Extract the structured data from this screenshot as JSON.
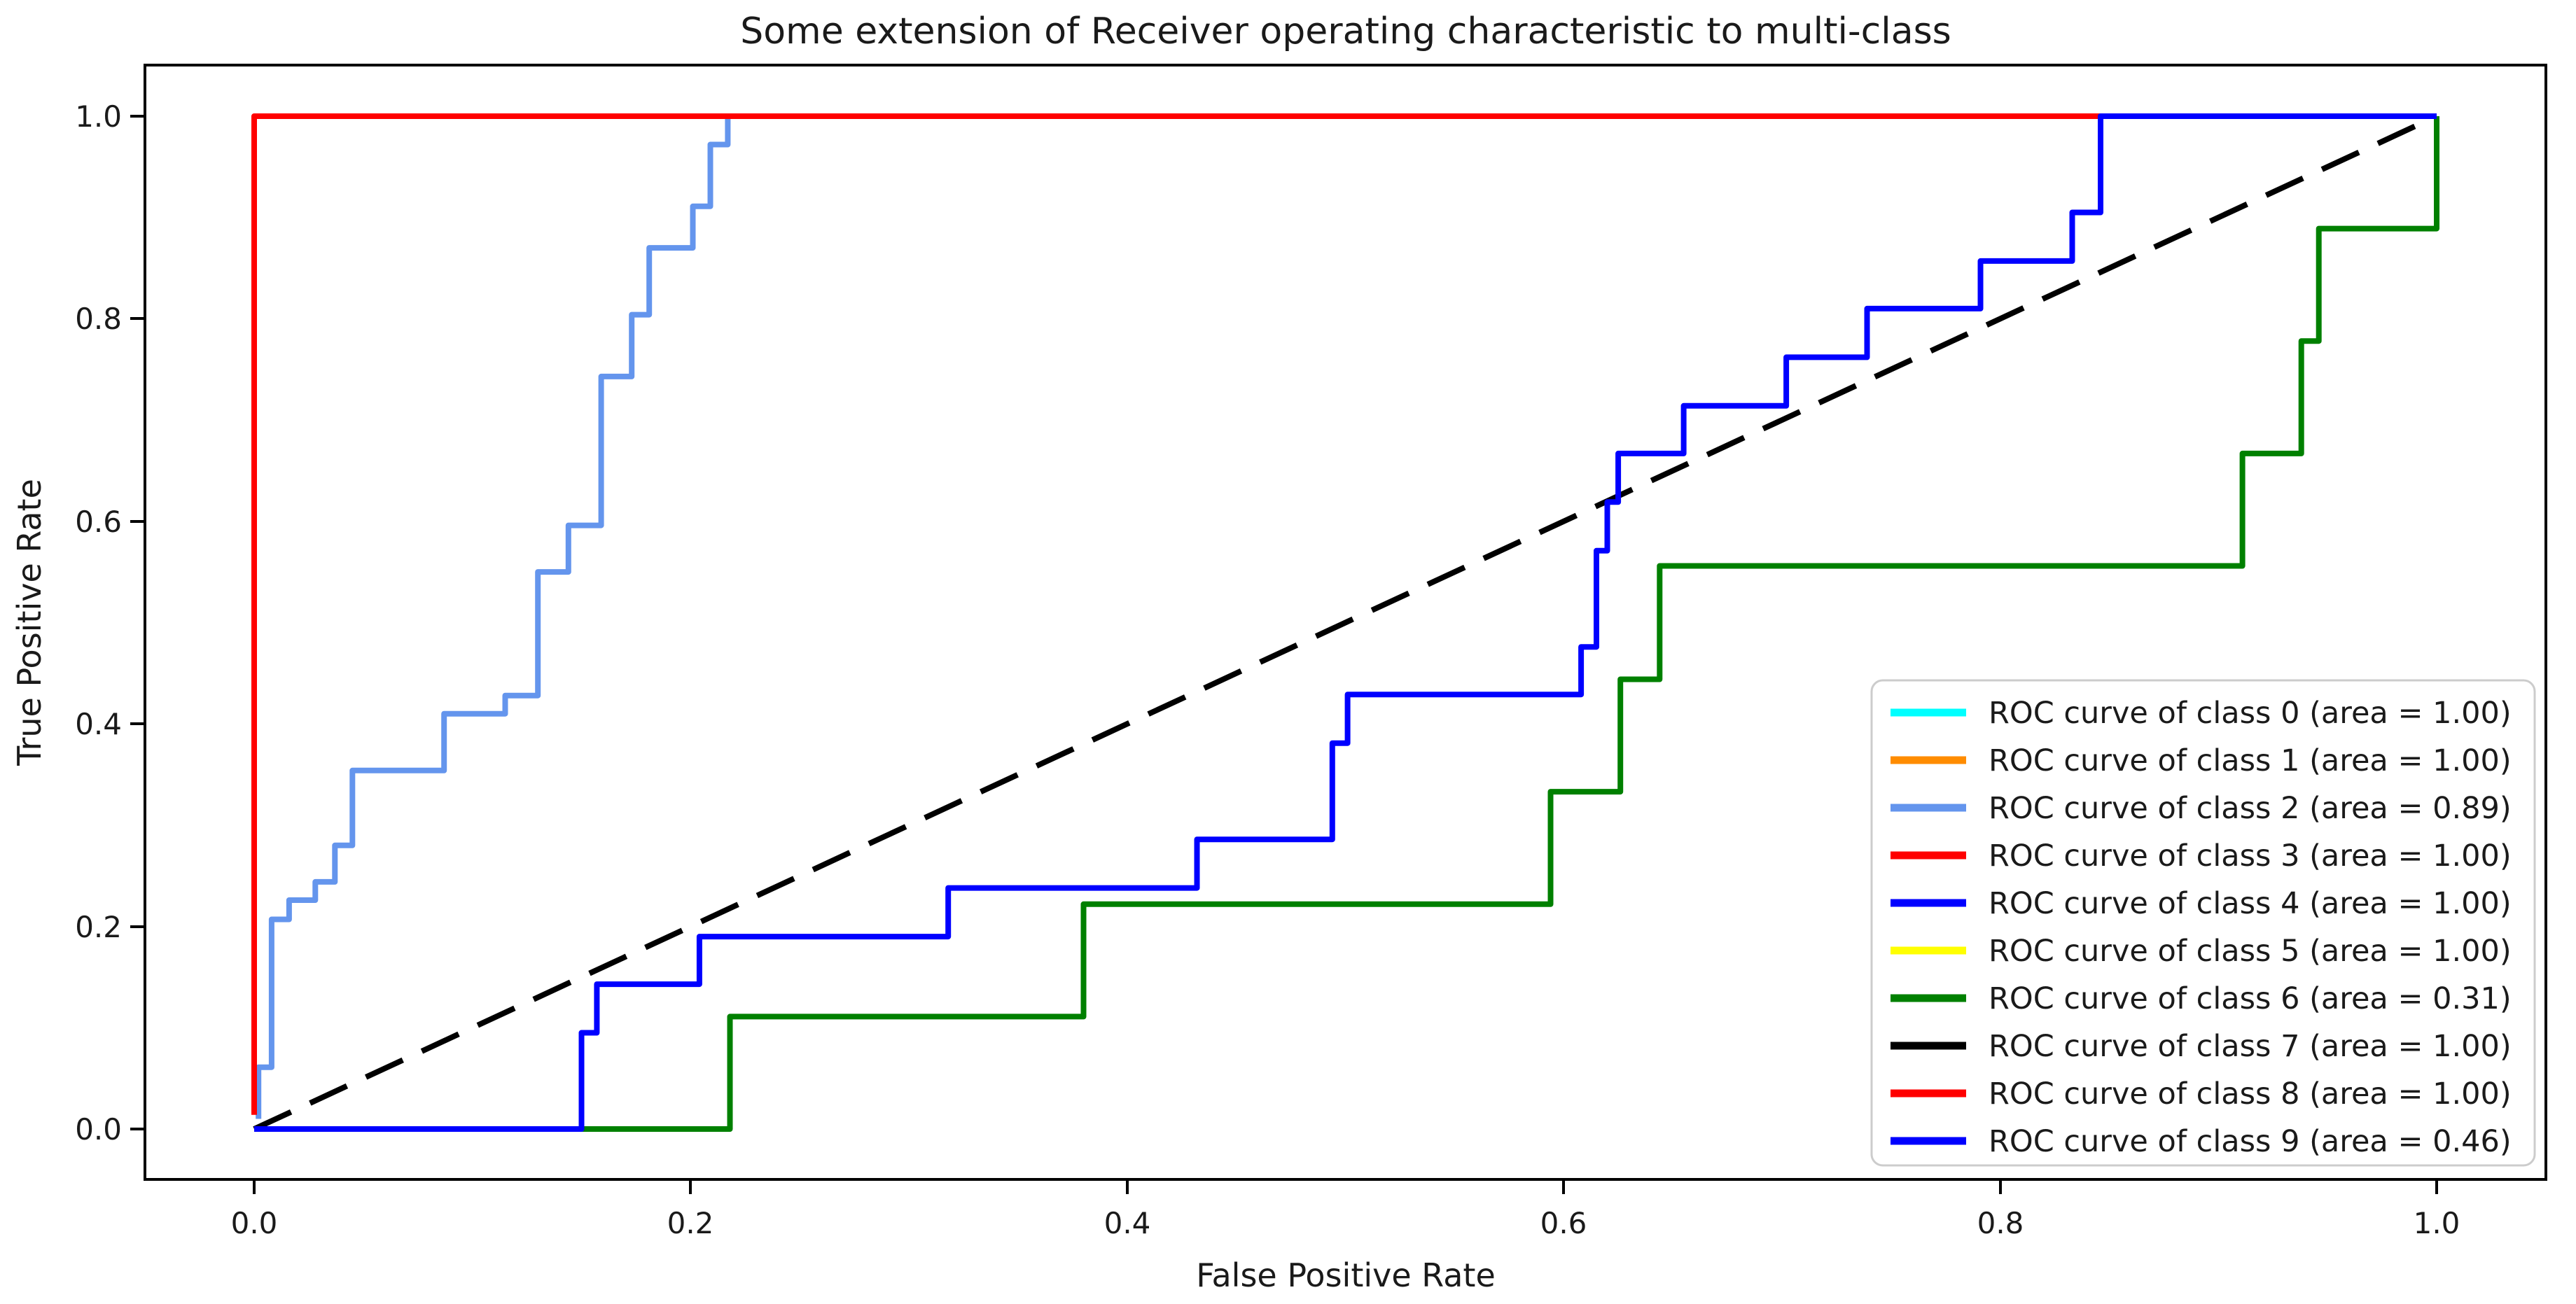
{
  "chart_data": {
    "type": "line",
    "title": "Some extension of Receiver operating characteristic to multi-class",
    "xlabel": "False Positive Rate",
    "ylabel": "True Positive Rate",
    "xlim": [
      -0.05,
      1.05
    ],
    "ylim": [
      -0.05,
      1.05
    ],
    "x_tick_labels": [
      "0.0",
      "0.2",
      "0.4",
      "0.6",
      "0.8",
      "1.0"
    ],
    "y_tick_labels": [
      "0.0",
      "0.2",
      "0.4",
      "0.6",
      "0.8",
      "1.0"
    ],
    "grid": false,
    "legend_position": "lower right",
    "legend": [
      {
        "label": "ROC curve of class 0 (area = 1.00)",
        "color": "#00FFFF"
      },
      {
        "label": "ROC curve of class 1 (area = 1.00)",
        "color": "#FF8C00"
      },
      {
        "label": "ROC curve of class 2 (area = 0.89)",
        "color": "#6495ED"
      },
      {
        "label": "ROC curve of class 3 (area = 1.00)",
        "color": "#FF0000"
      },
      {
        "label": "ROC curve of class 4 (area = 1.00)",
        "color": "#0000FF"
      },
      {
        "label": "ROC curve of class 5 (area = 1.00)",
        "color": "#FFFF00"
      },
      {
        "label": "ROC curve of class 6 (area = 0.31)",
        "color": "#008000"
      },
      {
        "label": "ROC curve of class 7 (area = 1.00)",
        "color": "#000000"
      },
      {
        "label": "ROC curve of class 8 (area = 1.00)",
        "color": "#FF0000"
      },
      {
        "label": "ROC curve of class 9 (area = 0.46)",
        "color": "#0000FF"
      }
    ],
    "series": [
      {
        "name": "chance-diagonal",
        "color": "#000000",
        "style": "dashed",
        "points": [
          [
            0,
            0
          ],
          [
            1,
            1
          ]
        ]
      },
      {
        "name": "roc-curve-class-2",
        "color": "#6495ED",
        "style": "solid",
        "points": [
          [
            0.002,
            0.01
          ],
          [
            0.002,
            0.061
          ],
          [
            0.008,
            0.061
          ],
          [
            0.008,
            0.207
          ],
          [
            0.016,
            0.207
          ],
          [
            0.016,
            0.226
          ],
          [
            0.028,
            0.226
          ],
          [
            0.028,
            0.244
          ],
          [
            0.037,
            0.244
          ],
          [
            0.037,
            0.28
          ],
          [
            0.045,
            0.28
          ],
          [
            0.045,
            0.354
          ],
          [
            0.087,
            0.354
          ],
          [
            0.087,
            0.41
          ],
          [
            0.115,
            0.41
          ],
          [
            0.115,
            0.428
          ],
          [
            0.13,
            0.428
          ],
          [
            0.13,
            0.55
          ],
          [
            0.144,
            0.55
          ],
          [
            0.144,
            0.596
          ],
          [
            0.159,
            0.596
          ],
          [
            0.159,
            0.743
          ],
          [
            0.173,
            0.743
          ],
          [
            0.173,
            0.804
          ],
          [
            0.181,
            0.804
          ],
          [
            0.181,
            0.87
          ],
          [
            0.201,
            0.87
          ],
          [
            0.201,
            0.911
          ],
          [
            0.209,
            0.911
          ],
          [
            0.209,
            0.972
          ],
          [
            0.217,
            0.972
          ],
          [
            0.217,
            1.0
          ]
        ]
      },
      {
        "name": "roc-curve-perfect-classes-3-8",
        "color": "#FF0000",
        "style": "solid",
        "points": [
          [
            0,
            0.014
          ],
          [
            0,
            1.0
          ],
          [
            1.0,
            1.0
          ]
        ]
      },
      {
        "name": "roc-curve-class-6",
        "color": "#008000",
        "style": "solid",
        "points": [
          [
            0,
            0
          ],
          [
            0.218,
            0
          ],
          [
            0.218,
            0.111
          ],
          [
            0.38,
            0.111
          ],
          [
            0.38,
            0.222
          ],
          [
            0.594,
            0.222
          ],
          [
            0.594,
            0.333
          ],
          [
            0.626,
            0.333
          ],
          [
            0.626,
            0.444
          ],
          [
            0.644,
            0.444
          ],
          [
            0.644,
            0.556
          ],
          [
            0.911,
            0.556
          ],
          [
            0.911,
            0.667
          ],
          [
            0.938,
            0.667
          ],
          [
            0.938,
            0.778
          ],
          [
            0.946,
            0.778
          ],
          [
            0.946,
            0.889
          ],
          [
            1.0,
            0.889
          ],
          [
            1.0,
            1.0
          ]
        ]
      },
      {
        "name": "roc-curve-class-9",
        "color": "#0000FF",
        "style": "solid",
        "points": [
          [
            0,
            0
          ],
          [
            0.15,
            0
          ],
          [
            0.15,
            0.095
          ],
          [
            0.157,
            0.095
          ],
          [
            0.157,
            0.143
          ],
          [
            0.204,
            0.143
          ],
          [
            0.204,
            0.19
          ],
          [
            0.318,
            0.19
          ],
          [
            0.318,
            0.238
          ],
          [
            0.432,
            0.238
          ],
          [
            0.432,
            0.286
          ],
          [
            0.494,
            0.286
          ],
          [
            0.494,
            0.381
          ],
          [
            0.501,
            0.381
          ],
          [
            0.501,
            0.429
          ],
          [
            0.608,
            0.429
          ],
          [
            0.608,
            0.476
          ],
          [
            0.615,
            0.476
          ],
          [
            0.615,
            0.571
          ],
          [
            0.62,
            0.571
          ],
          [
            0.62,
            0.619
          ],
          [
            0.625,
            0.619
          ],
          [
            0.625,
            0.667
          ],
          [
            0.655,
            0.667
          ],
          [
            0.655,
            0.714
          ],
          [
            0.702,
            0.714
          ],
          [
            0.702,
            0.762
          ],
          [
            0.739,
            0.762
          ],
          [
            0.739,
            0.81
          ],
          [
            0.791,
            0.81
          ],
          [
            0.791,
            0.857
          ],
          [
            0.833,
            0.857
          ],
          [
            0.833,
            0.905
          ],
          [
            0.846,
            0.905
          ],
          [
            0.846,
            1.0
          ],
          [
            1.0,
            1.0
          ]
        ]
      }
    ]
  }
}
